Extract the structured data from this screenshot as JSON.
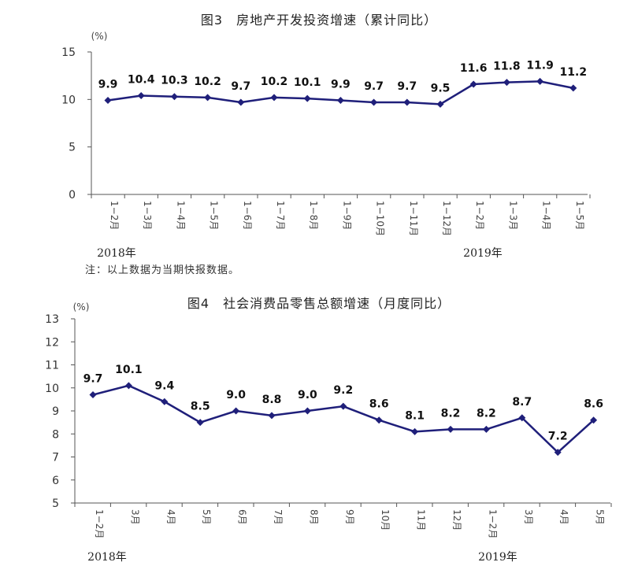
{
  "colors": {
    "line": "#1f1f7a",
    "axis": "#555555"
  },
  "chart_data": [
    {
      "type": "line",
      "title": "图3　房地产开发投资增速（累计同比）",
      "unit": "(%)",
      "categories": [
        "1−2月",
        "1−3月",
        "1−4月",
        "1−5月",
        "1−6月",
        "1−7月",
        "1−8月",
        "1−9月",
        "1−10月",
        "1−11月",
        "1−12月",
        "1−2月",
        "1−3月",
        "1−4月",
        "1−5月"
      ],
      "values": [
        9.9,
        10.4,
        10.3,
        10.2,
        9.7,
        10.2,
        10.1,
        9.9,
        9.7,
        9.7,
        9.5,
        11.6,
        11.8,
        11.9,
        11.2
      ],
      "data_labels": [
        "9.9",
        "10.4",
        "10.3",
        "10.2",
        "9.7",
        "10.2",
        "10.1",
        "9.9",
        "9.7",
        "9.7",
        "9.5",
        "11.6",
        "11.8",
        "11.9",
        "11.2"
      ],
      "year_labels": [
        "2018年",
        "2019年"
      ],
      "ylim": [
        0,
        15
      ],
      "yticks": [
        "0",
        "5",
        "10",
        "15"
      ],
      "grid": false,
      "note": "注：以上数据为当期快报数据。"
    },
    {
      "type": "line",
      "title": "图4　社会消费品零售总额增速（月度同比）",
      "unit": "(%)",
      "categories": [
        "1−2月",
        "3月",
        "4月",
        "5月",
        "6月",
        "7月",
        "8月",
        "9月",
        "10月",
        "11月",
        "12月",
        "1−2月",
        "3月",
        "4月",
        "5月"
      ],
      "values": [
        9.7,
        10.1,
        9.4,
        8.5,
        9.0,
        8.8,
        9.0,
        9.2,
        8.6,
        8.1,
        8.2,
        8.2,
        8.7,
        7.2,
        8.6
      ],
      "data_labels": [
        "9.7",
        "10.1",
        "9.4",
        "8.5",
        "9.0",
        "8.8",
        "9.0",
        "9.2",
        "8.6",
        "8.1",
        "8.2",
        "8.2",
        "8.7",
        "7.2",
        "8.6"
      ],
      "year_labels": [
        "2018年",
        "2019年"
      ],
      "ylim": [
        5,
        13
      ],
      "yticks": [
        "5",
        "6",
        "7",
        "8",
        "9",
        "10",
        "11",
        "12",
        "13"
      ],
      "grid": false
    }
  ]
}
